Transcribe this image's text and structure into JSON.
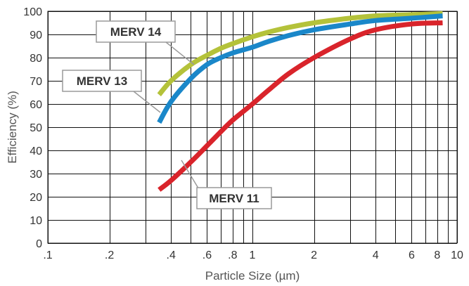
{
  "chart_data": {
    "type": "line",
    "title": "",
    "xlabel": "Particle Size (µm)",
    "ylabel": "Efficiency (%)",
    "xscale": "log",
    "xlim": [
      0.1,
      10
    ],
    "ylim": [
      0,
      100
    ],
    "grid": true,
    "legend": "callouts",
    "xticks": [
      {
        "value": 0.1,
        "label": ".1"
      },
      {
        "value": 0.2,
        "label": ".2"
      },
      {
        "value": 0.4,
        "label": ".4"
      },
      {
        "value": 0.6,
        "label": ".6"
      },
      {
        "value": 0.8,
        "label": ".8"
      },
      {
        "value": 1,
        "label": "1"
      },
      {
        "value": 2,
        "label": "2"
      },
      {
        "value": 4,
        "label": "4"
      },
      {
        "value": 6,
        "label": "6"
      },
      {
        "value": 8,
        "label": "8"
      },
      {
        "value": 10,
        "label": "10"
      }
    ],
    "yticks": [
      0,
      10,
      20,
      30,
      40,
      50,
      60,
      70,
      80,
      90,
      100
    ],
    "series": [
      {
        "name": "MERV 14",
        "color": "#b4c23a",
        "x": [
          0.35,
          0.4,
          0.5,
          0.6,
          0.7,
          0.8,
          1.0,
          1.2,
          1.5,
          2,
          3,
          4,
          6,
          8.5
        ],
        "y": [
          64,
          70,
          77,
          81,
          84,
          86,
          89,
          91,
          93,
          95,
          97,
          98,
          98.5,
          99
        ]
      },
      {
        "name": "MERV 13",
        "color": "#1a87c9",
        "x": [
          0.35,
          0.4,
          0.5,
          0.6,
          0.7,
          0.8,
          1.0,
          1.2,
          1.5,
          2,
          3,
          4,
          6,
          8.5
        ],
        "y": [
          52,
          61,
          71,
          77,
          80,
          82,
          84.5,
          87,
          89.5,
          92,
          94.5,
          96,
          97,
          98
        ]
      },
      {
        "name": "MERV 11",
        "color": "#d9242b",
        "x": [
          0.35,
          0.4,
          0.5,
          0.6,
          0.7,
          0.8,
          1.0,
          1.2,
          1.5,
          2,
          3,
          4,
          6,
          8.5
        ],
        "y": [
          23,
          27,
          35,
          42,
          48,
          53,
          60,
          66,
          73,
          80,
          88,
          92,
          94.5,
          95
        ]
      }
    ]
  }
}
